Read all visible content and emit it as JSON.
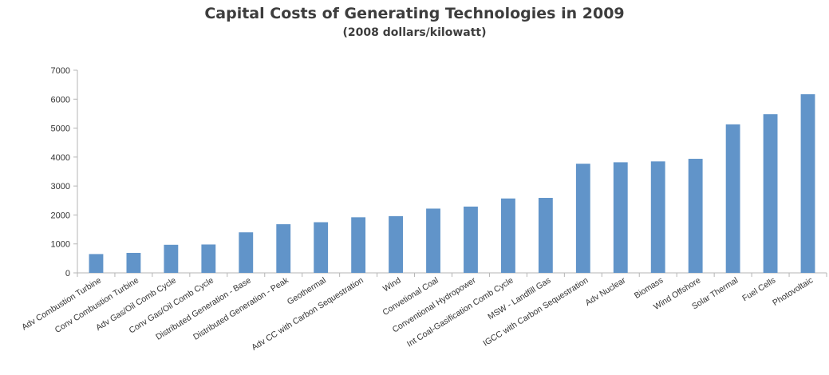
{
  "chart_data": {
    "type": "bar",
    "title": "Capital Costs of Generating Technologies in 2009",
    "subtitle": "(2008 dollars/kilowatt)",
    "xlabel": "",
    "ylabel": "",
    "ylim": [
      0,
      7000
    ],
    "yticks": [
      0,
      1000,
      2000,
      3000,
      4000,
      5000,
      6000,
      7000
    ],
    "grid": false,
    "legend": "none",
    "bar_color": "#6194c9",
    "categories": [
      "Adv Combustion Turbine",
      "Conv Combustion Turbine",
      "Adv Gas/Oil Comb Cycle",
      "Conv Gas/Oil Comb Cycle",
      "Distributed Generation - Base",
      "Distributed Generation - Peak",
      "Geothermal",
      "Adv CC with Carbon Sequestration",
      "Wind",
      "Convetional Coal",
      "Conventional Hydropower",
      "Int Coal-Gasification Comb Cycle",
      "MSW - Landfill Gas",
      "IGCC with Carbon Sequestration",
      "Adv Nuclear",
      "Biomass",
      "Wind Offshore",
      "Solar Thermal",
      "Fuel Cells",
      "Photovoltaic"
    ],
    "values": [
      650,
      690,
      970,
      980,
      1400,
      1680,
      1750,
      1920,
      1960,
      2220,
      2290,
      2570,
      2590,
      3770,
      3820,
      3850,
      3940,
      5130,
      5480,
      6170
    ]
  }
}
